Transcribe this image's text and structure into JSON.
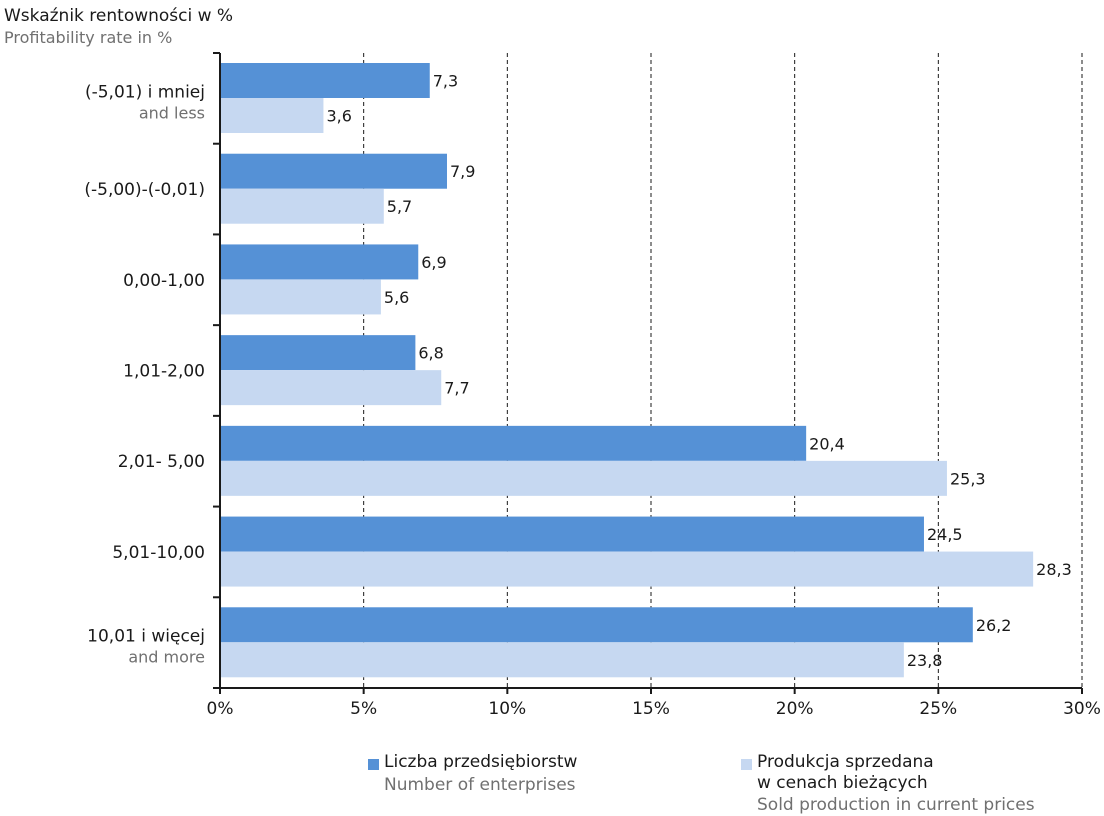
{
  "title": {
    "pl": "Wskaźnik rentowności w %",
    "en": "Profitability rate in %"
  },
  "colors": {
    "series1": "#5591d6",
    "series2": "#c6d8f1",
    "grid": "#1a1a1a",
    "axis": "#1a1a1a",
    "label_secondary": "#707070"
  },
  "legend": [
    {
      "pl": "Liczba przedsiębiorstw",
      "en": "Number of enterprises",
      "color": "#5591d6"
    },
    {
      "pl_line1": "Produkcja sprzedana",
      "pl_line2": "w cenach bieżących",
      "en": "Sold production in current prices",
      "color": "#c6d8f1"
    }
  ],
  "chart_data": {
    "type": "bar",
    "orientation": "horizontal",
    "categories": [
      {
        "pl": "(-5,01) i mniej",
        "en": "and less"
      },
      {
        "pl": "(-5,00)-(-0,01)",
        "en": ""
      },
      {
        "pl": "0,00-1,00",
        "en": ""
      },
      {
        "pl": "1,01-2,00",
        "en": ""
      },
      {
        "pl": "2,01- 5,00",
        "en": ""
      },
      {
        "pl": "5,01-10,00",
        "en": ""
      },
      {
        "pl": "10,01 i więcej",
        "en": "and more"
      }
    ],
    "series": [
      {
        "name": "Liczba przedsiębiorstw / Number of enterprises",
        "values": [
          7.3,
          7.9,
          6.9,
          6.8,
          20.4,
          24.5,
          26.2
        ],
        "labels": [
          "7,3",
          "7,9",
          "6,9",
          "6,8",
          "20,4",
          "24,5",
          "26,2"
        ]
      },
      {
        "name": "Produkcja sprzedana w cenach bieżących / Sold production in current prices",
        "values": [
          3.6,
          5.7,
          5.6,
          7.7,
          25.3,
          28.3,
          23.8
        ],
        "labels": [
          "3,6",
          "5,7",
          "5,6",
          "7,7",
          "25,3",
          "28,3",
          "23,8"
        ]
      }
    ],
    "xlim": [
      0,
      30
    ],
    "xticks": [
      0,
      5,
      10,
      15,
      20,
      25,
      30
    ],
    "xtick_labels": [
      "0%",
      "5%",
      "10%",
      "15%",
      "20%",
      "25%",
      "30%"
    ],
    "grid": "vertical-dashed",
    "legend_position": "bottom"
  }
}
